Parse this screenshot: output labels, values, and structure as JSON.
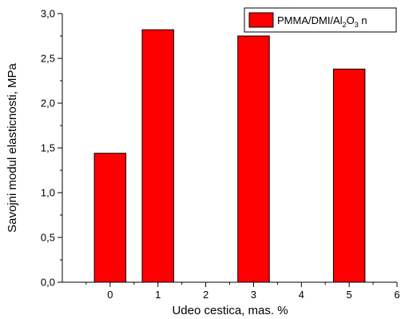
{
  "chart_data": {
    "type": "bar",
    "x": [
      0,
      1,
      3,
      5
    ],
    "values": [
      1.44,
      2.82,
      2.75,
      2.38
    ],
    "xlim": [
      -1,
      6
    ],
    "ylim": [
      0,
      3
    ],
    "xticks": [
      0,
      1,
      2,
      3,
      4,
      5,
      6
    ],
    "xtick_labels": [
      "0",
      "1",
      "2",
      "3",
      "4",
      "5",
      "6"
    ],
    "yticks": [
      0,
      0.5,
      1,
      1.5,
      2,
      2.5,
      3
    ],
    "ytick_labels": [
      "0,0",
      "0,5",
      "1,0",
      "1,5",
      "2,0",
      "2,5",
      "3,0"
    ],
    "xlabel": "Udeo cestica, mas. %",
    "ylabel": "Savojni modul elasticnosti, MPa",
    "series": [
      {
        "name": "PMMA/DMI/Al2O3 n",
        "color": "#ff0000",
        "values": [
          1.44,
          2.82,
          2.75,
          2.38
        ]
      }
    ],
    "legend": {
      "position": "top-right",
      "parts": [
        "PMMA/DMI/Al",
        "2",
        "O",
        "3",
        " n"
      ]
    },
    "grid": false
  }
}
